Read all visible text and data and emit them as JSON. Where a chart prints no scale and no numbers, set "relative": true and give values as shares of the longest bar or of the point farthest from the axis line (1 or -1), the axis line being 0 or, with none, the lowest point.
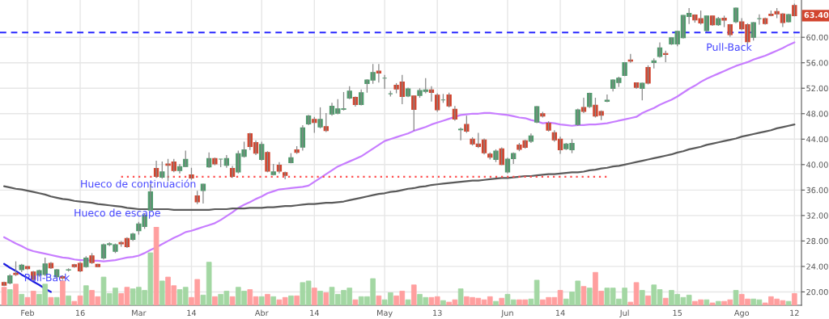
{
  "chart_data": [
    {
      "type": "candlestick",
      "categories": [
        null,
        null,
        null,
        null,
        "Feb",
        null,
        null,
        null,
        null,
        null,
        null,
        null,
        null,
        "16",
        null,
        null,
        null,
        null,
        null,
        null,
        null,
        null,
        null,
        "Mar",
        null,
        null,
        null,
        null,
        null,
        null,
        null,
        null,
        "14",
        null,
        null,
        null,
        null,
        null,
        null,
        null,
        null,
        null,
        null,
        null,
        "Abr",
        null,
        null,
        null,
        null,
        null,
        null,
        null,
        null,
        "14",
        null,
        null,
        null,
        null,
        null,
        null,
        null,
        null,
        null,
        null,
        null,
        "May",
        null,
        null,
        null,
        null,
        null,
        null,
        null,
        null,
        "13",
        null,
        null,
        null,
        null,
        null,
        null,
        null,
        null,
        null,
        null,
        null,
        "Jun",
        null,
        null,
        null,
        null,
        null,
        null,
        null,
        null,
        "14",
        null,
        null,
        null,
        null,
        null,
        null,
        null,
        null,
        null,
        null,
        "Jul",
        null,
        null,
        null,
        null,
        null,
        null,
        null,
        null,
        "15",
        null,
        null,
        null,
        null,
        null,
        null,
        null,
        null,
        null,
        null,
        "Ago",
        null,
        null,
        null,
        null,
        null,
        null,
        null,
        null,
        "12"
      ],
      "ohlc": [
        [
          21.47,
          21.6,
          20.9,
          21.05
        ],
        [
          21.39,
          22.8,
          21.2,
          22.52
        ],
        [
          22.93,
          24.8,
          22.5,
          22.72
        ],
        [
          23.48,
          24.4,
          23.1,
          24.19
        ],
        [
          23.98,
          24.1,
          23.5,
          23.65
        ],
        [
          23.14,
          23.3,
          21.8,
          21.97
        ],
        [
          22.64,
          23.5,
          22.4,
          23.35
        ],
        [
          22.72,
          25.4,
          22.5,
          24.4
        ],
        [
          24.49,
          24.7,
          23.6,
          23.77
        ],
        [
          22.39,
          23.6,
          22.2,
          23.48
        ],
        [
          22.39,
          22.6,
          21.9,
          22.18
        ],
        [
          23.44,
          23.7,
          23.2,
          23.48
        ],
        [
          24.27,
          24.4,
          23.8,
          23.98
        ],
        [
          24.49,
          24.7,
          23.1,
          23.31
        ],
        [
          23.98,
          25.6,
          23.8,
          25.32
        ],
        [
          25.66,
          26.1,
          24.4,
          24.61
        ],
        [
          24.32,
          24.4,
          23.9,
          23.98
        ],
        [
          25.32,
          27.6,
          25.1,
          27.42
        ],
        [
          27.44,
          27.8,
          27.2,
          27.56
        ],
        [
          26.37,
          27.6,
          26.1,
          27.42
        ],
        [
          27.75,
          28.0,
          27.1,
          27.54
        ],
        [
          28.38,
          28.6,
          26.9,
          27.12
        ],
        [
          28.26,
          29.3,
          28.0,
          29.09
        ],
        [
          29.6,
          31.0,
          29.0,
          30.69
        ],
        [
          30.27,
          32.3,
          29.9,
          32.07
        ],
        [
          32.86,
          36.9,
          32.8,
          35.71
        ],
        [
          39.39,
          40.6,
          37.9,
          38.14
        ],
        [
          38.01,
          40.5,
          37.8,
          38.85
        ],
        [
          40.1,
          40.9,
          37.4,
          39.89
        ],
        [
          40.4,
          40.9,
          38.8,
          39.06
        ],
        [
          39.06,
          40.1,
          38.6,
          39.69
        ],
        [
          39.69,
          42.2,
          39.6,
          40.82
        ],
        [
          38.39,
          39.5,
          37.6,
          37.89
        ],
        [
          35.08,
          35.9,
          33.8,
          34.16
        ],
        [
          35.92,
          37.0,
          33.9,
          36.92
        ],
        [
          39.65,
          41.9,
          39.5,
          40.94
        ],
        [
          40.94,
          41.1,
          39.9,
          40.1
        ],
        [
          40.86,
          40.9,
          39.6,
          40.86
        ],
        [
          39.9,
          41.5,
          39.5,
          40.94
        ],
        [
          39.39,
          39.8,
          37.9,
          38.14
        ],
        [
          38.85,
          42.2,
          38.6,
          41.7
        ],
        [
          41.28,
          43.6,
          41.1,
          42.33
        ],
        [
          44.84,
          45.0,
          42.3,
          42.83
        ],
        [
          43.46,
          43.8,
          41.5,
          41.78
        ],
        [
          40.82,
          43.6,
          40.6,
          43.16
        ],
        [
          41.91,
          42.1,
          38.8,
          38.97
        ],
        [
          38.43,
          40.1,
          38.3,
          38.85
        ],
        [
          39.9,
          40.4,
          38.6,
          38.97
        ],
        [
          38.73,
          38.9,
          37.7,
          38.31
        ],
        [
          40.31,
          41.8,
          40.2,
          41.07
        ],
        [
          42.33,
          42.9,
          41.7,
          41.91
        ],
        [
          42.75,
          46.2,
          42.2,
          45.76
        ],
        [
          46.39,
          47.8,
          46.2,
          47.64
        ],
        [
          47.1,
          47.5,
          45.0,
          46.6
        ],
        [
          45.93,
          49.0,
          45.7,
          47.1
        ],
        [
          45.97,
          48.1,
          45.1,
          45.34
        ],
        [
          47.94,
          49.7,
          47.7,
          49.18
        ],
        [
          48.06,
          50.3,
          47.9,
          48.77
        ],
        [
          48.69,
          51.4,
          48.5,
          48.77
        ],
        [
          50.45,
          52.3,
          50.3,
          51.54
        ],
        [
          50.57,
          50.7,
          49.1,
          49.44
        ],
        [
          49.44,
          51.8,
          49.3,
          51.29
        ],
        [
          52.75,
          53.4,
          51.3,
          53.29
        ],
        [
          53.29,
          55.8,
          52.7,
          54.47
        ],
        [
          54.68,
          55.8,
          52.9,
          54.39
        ],
        [
          53.59,
          54.1,
          51.9,
          53.59
        ],
        [
          51.12,
          51.6,
          50.7,
          51.12
        ],
        [
          52.46,
          52.8,
          51.2,
          51.87
        ],
        [
          52.96,
          54.1,
          49.5,
          50.7
        ],
        [
          50.78,
          52.1,
          50.6,
          51.91
        ],
        [
          50.78,
          50.9,
          45.3,
          48.69
        ],
        [
          50.87,
          52.0,
          50.5,
          51.63
        ],
        [
          51.5,
          53.6,
          51.2,
          51.75
        ],
        [
          51.75,
          52.3,
          49.9,
          51.33
        ],
        [
          50.91,
          51.2,
          48.3,
          48.61
        ],
        [
          50.16,
          51.1,
          49.7,
          50.16
        ],
        [
          50.95,
          51.3,
          49.0,
          49.23
        ],
        [
          48.69,
          49.2,
          46.9,
          47.14
        ],
        [
          45.47,
          45.8,
          43.8,
          45.56
        ],
        [
          46.31,
          47.7,
          45.0,
          45.26
        ],
        [
          44.0,
          44.3,
          43.0,
          43.25
        ],
        [
          43.25,
          45.0,
          42.6,
          42.83
        ],
        [
          43.88,
          44.1,
          41.6,
          41.87
        ],
        [
          41.66,
          41.9,
          40.8,
          41.15
        ],
        [
          40.82,
          42.4,
          40.4,
          42.12
        ],
        [
          42.49,
          42.7,
          39.9,
          40.02
        ],
        [
          38.85,
          41.1,
          38.6,
          40.86
        ],
        [
          40.94,
          41.9,
          40.1,
          41.74
        ],
        [
          43.08,
          43.4,
          42.1,
          42.41
        ],
        [
          43.75,
          43.9,
          42.5,
          42.7
        ],
        [
          43.67,
          44.9,
          43.4,
          44.51
        ],
        [
          46.68,
          49.2,
          46.5,
          49.11
        ],
        [
          47.98,
          48.3,
          47.4,
          47.64
        ],
        [
          46.51,
          46.8,
          45.2,
          45.42
        ],
        [
          45.0,
          45.4,
          43.6,
          43.88
        ],
        [
          44.0,
          44.4,
          41.7,
          42.33
        ],
        [
          42.49,
          43.4,
          42.3,
          43.25
        ],
        [
          42.33,
          44.0,
          41.8,
          43.33
        ],
        [
          46.31,
          48.8,
          46.1,
          48.61
        ],
        [
          48.98,
          50.5,
          48.1,
          48.35
        ],
        [
          49.11,
          51.3,
          48.9,
          51.2
        ],
        [
          49.32,
          50.5,
          47.4,
          47.64
        ],
        [
          48.35,
          48.5,
          47.0,
          47.77
        ],
        [
          49.95,
          51.0,
          49.8,
          50.12
        ],
        [
          51.96,
          53.4,
          51.5,
          53.29
        ],
        [
          52.88,
          53.8,
          52.2,
          53.59
        ],
        [
          54.01,
          56.1,
          53.9,
          56.02
        ],
        [
          56.44,
          57.4,
          56.0,
          56.27
        ],
        [
          52.84,
          52.9,
          51.9,
          52.13
        ],
        [
          51.96,
          52.9,
          50.1,
          52.8
        ],
        [
          55.27,
          55.6,
          52.6,
          52.8
        ],
        [
          56.02,
          56.7,
          55.1,
          56.31
        ],
        [
          56.98,
          59.2,
          56.8,
          58.32
        ],
        [
          57.46,
          57.9,
          56.1,
          57.3
        ],
        [
          58.95,
          60.0,
          58.8,
          59.92
        ],
        [
          58.95,
          61.0,
          58.6,
          60.93
        ],
        [
          59.92,
          63.5,
          59.8,
          63.43
        ],
        [
          63.26,
          64.6,
          62.1,
          63.77
        ],
        [
          63.51,
          63.6,
          62.3,
          62.72
        ],
        [
          62.93,
          64.2,
          62.0,
          62.26
        ],
        [
          61.04,
          63.4,
          60.9,
          63.35
        ],
        [
          63.35,
          63.4,
          61.8,
          61.97
        ],
        [
          61.97,
          63.2,
          61.8,
          62.93
        ],
        [
          63.01,
          63.4,
          61.6,
          62.68
        ],
        [
          61.97,
          62.1,
          60.1,
          60.42
        ],
        [
          62.43,
          64.7,
          62.2,
          64.6
        ],
        [
          62.43,
          63.0,
          61.1,
          61.34
        ],
        [
          61.97,
          62.2,
          59.0,
          59.29
        ],
        [
          60.0,
          62.4,
          59.5,
          62.3
        ],
        [
          62.93,
          63.6,
          62.0,
          62.93
        ],
        [
          62.93,
          63.1,
          62.0,
          62.17
        ],
        [
          63.64,
          64.2,
          63.3,
          63.43
        ],
        [
          64.06,
          64.6,
          63.0,
          63.68
        ],
        [
          63.68,
          63.8,
          61.6,
          62.3
        ],
        [
          62.43,
          63.7,
          62.3,
          63.56
        ],
        [
          65.0,
          65.3,
          63.3,
          63.4
        ]
      ],
      "colors": [
        "#d2452f",
        "#4f9a6c",
        "#d2452f",
        "#4f9a6c",
        "#d2452f",
        "#d2452f",
        "#4f9a6c",
        "#4f9a6c",
        "#d2452f",
        "#4f9a6c",
        "#d2452f",
        "#4f9a6c",
        "#d2452f",
        "#d2452f",
        "#4f9a6c",
        "#d2452f",
        "#d2452f",
        "#4f9a6c",
        "#4f9a6c",
        "#4f9a6c",
        "#d2452f",
        "#d2452f",
        "#4f9a6c",
        "#4f9a6c",
        "#4f9a6c",
        "#4f9a6c",
        "#d2452f",
        "#4f9a6c",
        "#d2452f",
        "#d2452f",
        "#4f9a6c",
        "#4f9a6c",
        "#d2452f",
        "#d2452f",
        "#4f9a6c",
        "#4f9a6c",
        "#d2452f",
        "#4f9a6c",
        "#4f9a6c",
        "#d2452f",
        "#4f9a6c",
        "#4f9a6c",
        "#d2452f",
        "#d2452f",
        "#4f9a6c",
        "#d2452f",
        "#4f9a6c",
        "#d2452f",
        "#d2452f",
        "#4f9a6c",
        "#d2452f",
        "#4f9a6c",
        "#4f9a6c",
        "#d2452f",
        "#4f9a6c",
        "#d2452f",
        "#4f9a6c",
        "#4f9a6c",
        "#4f9a6c",
        "#4f9a6c",
        "#d2452f",
        "#4f9a6c",
        "#4f9a6c",
        "#4f9a6c",
        "#d2452f",
        "#4f9a6c",
        "#4f9a6c",
        "#d2452f",
        "#d2452f",
        "#4f9a6c",
        "#d2452f",
        "#4f9a6c",
        "#4f9a6c",
        "#d2452f",
        "#d2452f",
        "#4f9a6c",
        "#d2452f",
        "#d2452f",
        "#4f9a6c",
        "#d2452f",
        "#d2452f",
        "#d2452f",
        "#d2452f",
        "#d2452f",
        "#4f9a6c",
        "#d2452f",
        "#4f9a6c",
        "#4f9a6c",
        "#d2452f",
        "#d2452f",
        "#4f9a6c",
        "#4f9a6c",
        "#d2452f",
        "#d2452f",
        "#d2452f",
        "#d2452f",
        "#4f9a6c",
        "#4f9a6c",
        "#4f9a6c",
        "#d2452f",
        "#4f9a6c",
        "#d2452f",
        "#d2452f",
        "#4f9a6c",
        "#4f9a6c",
        "#4f9a6c",
        "#4f9a6c",
        "#d2452f",
        "#d2452f",
        "#4f9a6c",
        "#d2452f",
        "#4f9a6c",
        "#4f9a6c",
        "#d2452f",
        "#4f9a6c",
        "#4f9a6c",
        "#4f9a6c",
        "#4f9a6c",
        "#d2452f",
        "#d2452f",
        "#4f9a6c",
        "#d2452f",
        "#4f9a6c",
        "#d2452f",
        "#d2452f",
        "#4f9a6c",
        "#d2452f",
        "#d2452f",
        "#4f9a6c",
        "#4f9a6c",
        "#d2452f",
        "#d2452f",
        "#d2452f",
        "#d2452f",
        "#4f9a6c",
        "#d2452f"
      ],
      "series": [
        {
          "type": "line",
          "color": "#c77dff",
          "values": [
            28.6,
            28.1,
            27.6,
            27.2,
            26.7,
            26.4,
            26.2,
            26.0,
            25.8,
            25.6,
            25.4,
            25.3,
            25.1,
            25.0,
            25.0,
            24.9,
            24.9,
            24.8,
            24.9,
            25.0,
            25.2,
            25.4,
            25.5,
            25.7,
            26.1,
            26.6,
            27.0,
            27.5,
            28.0,
            28.5,
            28.9,
            29.4,
            29.6,
            29.9,
            30.2,
            30.5,
            30.8,
            31.3,
            31.9,
            32.5,
            33.2,
            33.7,
            34.1,
            34.6,
            35.0,
            35.5,
            35.8,
            36.1,
            36.2,
            36.3,
            36.4,
            36.5,
            36.7,
            37.3,
            37.9,
            38.5,
            39.1,
            39.7,
            40.1,
            40.5,
            40.9,
            41.3,
            41.9,
            42.5,
            43.1,
            43.7,
            44.0,
            44.3,
            44.6,
            44.9,
            45.3,
            45.6,
            45.9,
            46.3,
            46.6,
            46.9,
            47.2,
            47.5,
            47.8,
            47.9,
            48.0,
            48.0,
            48.1,
            48.1,
            48.0,
            47.9,
            47.8,
            47.6,
            47.4,
            47.3,
            47.0,
            46.8,
            46.5,
            46.6,
            46.5,
            46.3,
            46.2,
            46.1,
            46.2,
            46.2,
            46.3,
            46.3,
            46.4,
            46.5,
            46.7,
            46.9,
            47.1,
            47.3,
            47.5,
            48.1,
            48.5,
            48.9,
            49.4,
            49.8,
            50.2,
            50.7,
            51.3,
            51.9,
            52.4,
            53.0,
            53.5,
            53.9,
            54.3,
            54.7,
            55.1,
            55.5,
            55.8,
            56.1,
            56.5,
            56.8,
            57.1,
            57.5,
            57.9,
            58.3,
            58.8,
            59.2
          ]
        },
        {
          "type": "line",
          "color": "#5a5a5a",
          "values": [
            36.6,
            36.4,
            36.2,
            36.1,
            35.9,
            35.7,
            35.5,
            35.3,
            35.0,
            34.8,
            34.6,
            34.5,
            34.3,
            34.2,
            34.1,
            34.0,
            33.8,
            33.7,
            33.6,
            33.5,
            33.4,
            33.2,
            33.1,
            33.0,
            33.0,
            33.0,
            33.0,
            33.0,
            33.0,
            32.9,
            32.9,
            32.9,
            32.9,
            32.9,
            32.9,
            32.9,
            33.0,
            33.0,
            33.0,
            33.1,
            33.1,
            33.1,
            33.2,
            33.2,
            33.2,
            33.3,
            33.3,
            33.4,
            33.5,
            33.5,
            33.6,
            33.7,
            33.8,
            33.8,
            33.9,
            34.0,
            34.0,
            34.1,
            34.2,
            34.4,
            34.6,
            34.8,
            35.0,
            35.2,
            35.4,
            35.5,
            35.7,
            35.8,
            36.0,
            36.2,
            36.3,
            36.5,
            36.6,
            36.8,
            36.9,
            37.0,
            37.1,
            37.2,
            37.3,
            37.4,
            37.5,
            37.5,
            37.6,
            37.7,
            37.8,
            37.9,
            37.9,
            38.0,
            38.1,
            38.2,
            38.2,
            38.3,
            38.4,
            38.5,
            38.5,
            38.6,
            38.7,
            38.8,
            38.8,
            38.9,
            39.1,
            39.2,
            39.4,
            39.5,
            39.7,
            39.8,
            40.0,
            40.2,
            40.4,
            40.6,
            40.8,
            41.0,
            41.2,
            41.4,
            41.6,
            41.9,
            42.1,
            42.4,
            42.6,
            42.8,
            43.1,
            43.3,
            43.5,
            43.7,
            43.9,
            44.1,
            44.4,
            44.6,
            44.8,
            45.0,
            45.2,
            45.4,
            45.7,
            45.9,
            46.1,
            46.3
          ]
        },
        {
          "type": "line",
          "color": "#ff4d4d",
          "line_style": "dotted",
          "values": [
            null,
            null,
            null,
            null,
            null,
            null,
            null,
            null,
            null,
            null,
            null,
            null,
            null,
            null,
            null,
            null,
            null,
            null,
            null,
            null,
            38.1,
            38.1,
            38.1,
            38.1,
            38.1,
            38.1,
            38.1,
            38.1,
            38.1,
            38.1,
            38.1,
            38.1,
            38.1,
            38.1,
            38.1,
            38.1,
            38.1,
            38.1,
            38.1,
            38.1,
            38.1,
            38.1,
            38.1,
            38.1,
            38.1,
            38.1,
            38.1,
            38.1,
            38.1,
            38.1,
            38.1,
            38.1,
            38.1,
            38.1,
            38.1,
            38.1,
            38.1,
            38.1,
            38.1,
            38.1,
            38.1,
            38.1,
            38.1,
            38.1,
            38.1,
            38.1,
            38.1,
            38.1,
            38.1,
            38.1,
            38.1,
            38.1,
            38.1,
            38.1,
            38.1,
            38.1,
            38.1,
            38.1,
            38.1,
            38.1,
            38.1,
            38.1,
            38.1,
            38.1,
            38.1,
            38.1,
            38.1,
            38.1,
            38.1,
            38.1,
            38.1,
            38.1,
            38.1,
            38.1,
            38.1,
            38.1,
            38.1,
            38.1,
            38.1,
            38.1,
            38.1,
            38.1,
            38.1,
            38.1,
            null,
            null,
            null,
            null,
            null,
            null,
            null,
            null,
            null,
            null,
            null,
            null,
            null,
            null,
            null,
            null,
            null,
            null,
            null,
            null,
            null,
            null,
            null,
            null,
            null,
            null,
            null,
            null,
            null,
            null,
            null,
            null
          ]
        },
        {
          "type": "line",
          "color": "#1f1fe0",
          "values": [
            24.4,
            23.8,
            23.3,
            22.7,
            22.2,
            21.6,
            21.1,
            20.5,
            20.0,
            null,
            null,
            null,
            null,
            null,
            null,
            null,
            null,
            null,
            null,
            null,
            null,
            null,
            null,
            null,
            null,
            null,
            null,
            null,
            null,
            null,
            null,
            null,
            null,
            null,
            null,
            null,
            null,
            null,
            null,
            null,
            null,
            null,
            null,
            null,
            null,
            null,
            null,
            null,
            null,
            null,
            null,
            null,
            null,
            null,
            null,
            null,
            null,
            null,
            null,
            null,
            null,
            null,
            null,
            null,
            null,
            null,
            null,
            null,
            null,
            null,
            null,
            null,
            null,
            null,
            null,
            null,
            null,
            null,
            null,
            null,
            null,
            null,
            null,
            null,
            null,
            null,
            null,
            null,
            null,
            null,
            null,
            null,
            null,
            null,
            null,
            null,
            null,
            null,
            null,
            null,
            null,
            null,
            null,
            null,
            null,
            null,
            null,
            null,
            null,
            null,
            null,
            null,
            null,
            null,
            null,
            null,
            null,
            null,
            null,
            null,
            null,
            null,
            null,
            null,
            null,
            null,
            null,
            null,
            null,
            null,
            null,
            null,
            null,
            null,
            null,
            null
          ]
        }
      ],
      "ylim": [
        17.9,
        65.86
      ],
      "yticks": [
        {
          "value": 20,
          "label": "20.00"
        },
        {
          "value": 24,
          "label": "24.00"
        },
        {
          "value": 28,
          "label": "28.00"
        },
        {
          "value": 32,
          "label": "32.00"
        },
        {
          "value": 36,
          "label": "36.00"
        },
        {
          "value": 40,
          "label": "40.00"
        },
        {
          "value": 44,
          "label": "44.00"
        },
        {
          "value": 48,
          "label": "48.00"
        },
        {
          "value": 52,
          "label": "52.00"
        },
        {
          "value": 56,
          "label": "56.00"
        },
        {
          "value": 60,
          "label": "60.00"
        }
      ],
      "grid": true,
      "ref_lines": [
        {
          "axis": "y",
          "value": 60.75,
          "color": "#2a2aff",
          "line_style": "dashed"
        }
      ],
      "annotations": [
        "Pull-Back",
        "Hueco de escape",
        "Hueco de continuación",
        "Pull-Back",
        {
          "text": "63.40",
          "x": "12",
          "y": 63.4
        }
      ]
    },
    {
      "type": "bar",
      "relative": true,
      "categories": [
        null,
        null,
        null,
        null,
        null,
        null,
        null,
        null,
        null,
        null,
        null,
        null,
        null,
        null,
        null,
        null,
        null,
        null,
        null,
        null,
        null,
        null,
        null,
        null,
        null,
        null,
        null,
        null,
        null,
        null,
        null,
        null,
        null,
        null,
        null,
        null,
        null,
        null,
        null,
        null,
        null,
        null,
        null,
        null,
        null,
        null,
        null,
        null,
        null,
        null,
        null,
        null,
        null,
        null,
        null,
        null,
        null,
        null,
        null,
        null,
        null,
        null,
        null,
        null,
        null,
        null,
        null,
        null,
        null,
        null,
        null,
        null,
        null,
        null,
        null,
        null,
        null,
        null,
        null,
        null,
        null,
        null,
        null,
        null,
        null,
        null,
        null,
        null,
        null,
        null,
        null,
        null,
        null,
        null,
        null,
        null,
        null,
        null,
        null,
        null,
        null,
        null,
        null,
        null,
        null,
        null,
        null,
        null,
        null,
        null,
        null,
        null,
        null,
        null,
        null,
        null,
        null,
        null,
        null,
        null,
        null,
        null,
        null,
        null,
        null,
        null,
        null,
        null,
        null,
        null,
        null,
        null,
        null,
        null,
        null,
        null
      ],
      "values": [
        0.23,
        0.2,
        0.27,
        0.14,
        0.1,
        0.18,
        0.14,
        0.27,
        0.1,
        0.1,
        0.31,
        0.12,
        0.05,
        0.12,
        0.25,
        0.19,
        0.11,
        0.36,
        0.15,
        0.22,
        0.15,
        0.23,
        0.21,
        0.23,
        0.19,
        0.67,
        1.0,
        0.31,
        0.36,
        0.25,
        0.2,
        0.23,
        0.1,
        0.33,
        0.13,
        0.55,
        0.11,
        0.14,
        0.18,
        0.11,
        0.23,
        0.18,
        0.2,
        0.11,
        0.11,
        0.14,
        0.11,
        0.07,
        0.1,
        0.12,
        0.12,
        0.29,
        0.31,
        0.22,
        0.18,
        0.16,
        0.23,
        0.14,
        0.19,
        0.22,
        0.07,
        0.11,
        0.11,
        0.34,
        0.12,
        0.07,
        0.16,
        0.12,
        0.18,
        0.07,
        0.26,
        0.14,
        0.1,
        0.1,
        0.11,
        0.06,
        0.04,
        0.07,
        0.21,
        0.11,
        0.1,
        0.09,
        0.07,
        0.11,
        0.05,
        0.09,
        0.14,
        0.07,
        0.07,
        0.07,
        0.08,
        0.32,
        0.07,
        0.1,
        0.1,
        0.19,
        0.08,
        0.17,
        0.31,
        0.24,
        0.22,
        0.42,
        0.18,
        0.22,
        0.22,
        0.08,
        0.22,
        0.04,
        0.29,
        0.19,
        0.12,
        0.26,
        0.2,
        0.09,
        0.19,
        0.14,
        0.1,
        0.13,
        0.05,
        0.07,
        0.07,
        0.03,
        0.05,
        0.05,
        0.07,
        0.19,
        0.14,
        0.08,
        0.08,
        0.07,
        0.03,
        0.11,
        0.08,
        0.06,
        0.05,
        0.15
      ],
      "colors": [
        "#ff9f9f",
        "#a3d7a3",
        "#ff9f9f",
        "#a3d7a3",
        "#ff9f9f",
        "#ff9f9f",
        "#a3d7a3",
        "#a3d7a3",
        "#ff9f9f",
        "#a3d7a3",
        "#ff9f9f",
        "#a3d7a3",
        "#ff9f9f",
        "#ff9f9f",
        "#a3d7a3",
        "#ff9f9f",
        "#ff9f9f",
        "#a3d7a3",
        "#a3d7a3",
        "#a3d7a3",
        "#ff9f9f",
        "#ff9f9f",
        "#a3d7a3",
        "#a3d7a3",
        "#a3d7a3",
        "#a3d7a3",
        "#ff9f9f",
        "#a3d7a3",
        "#ff9f9f",
        "#ff9f9f",
        "#a3d7a3",
        "#a3d7a3",
        "#ff9f9f",
        "#ff9f9f",
        "#a3d7a3",
        "#a3d7a3",
        "#ff9f9f",
        "#a3d7a3",
        "#a3d7a3",
        "#ff9f9f",
        "#a3d7a3",
        "#a3d7a3",
        "#ff9f9f",
        "#ff9f9f",
        "#a3d7a3",
        "#ff9f9f",
        "#a3d7a3",
        "#ff9f9f",
        "#ff9f9f",
        "#a3d7a3",
        "#ff9f9f",
        "#a3d7a3",
        "#a3d7a3",
        "#ff9f9f",
        "#a3d7a3",
        "#ff9f9f",
        "#a3d7a3",
        "#a3d7a3",
        "#a3d7a3",
        "#a3d7a3",
        "#ff9f9f",
        "#a3d7a3",
        "#a3d7a3",
        "#a3d7a3",
        "#ff9f9f",
        "#a3d7a3",
        "#a3d7a3",
        "#ff9f9f",
        "#ff9f9f",
        "#a3d7a3",
        "#ff9f9f",
        "#a3d7a3",
        "#a3d7a3",
        "#ff9f9f",
        "#ff9f9f",
        "#a3d7a3",
        "#ff9f9f",
        "#ff9f9f",
        "#a3d7a3",
        "#ff9f9f",
        "#ff9f9f",
        "#ff9f9f",
        "#ff9f9f",
        "#ff9f9f",
        "#a3d7a3",
        "#ff9f9f",
        "#a3d7a3",
        "#a3d7a3",
        "#ff9f9f",
        "#ff9f9f",
        "#a3d7a3",
        "#a3d7a3",
        "#ff9f9f",
        "#ff9f9f",
        "#ff9f9f",
        "#ff9f9f",
        "#a3d7a3",
        "#a3d7a3",
        "#a3d7a3",
        "#ff9f9f",
        "#a3d7a3",
        "#ff9f9f",
        "#ff9f9f",
        "#a3d7a3",
        "#a3d7a3",
        "#a3d7a3",
        "#a3d7a3",
        "#ff9f9f",
        "#ff9f9f",
        "#a3d7a3",
        "#ff9f9f",
        "#a3d7a3",
        "#a3d7a3",
        "#ff9f9f",
        "#a3d7a3",
        "#a3d7a3",
        "#a3d7a3",
        "#a3d7a3",
        "#ff9f9f",
        "#ff9f9f",
        "#a3d7a3",
        "#ff9f9f",
        "#a3d7a3",
        "#ff9f9f",
        "#ff9f9f",
        "#a3d7a3",
        "#ff9f9f",
        "#ff9f9f",
        "#a3d7a3",
        "#a3d7a3",
        "#ff9f9f",
        "#ff9f9f",
        "#ff9f9f",
        "#ff9f9f",
        "#a3d7a3",
        "#ff9f9f"
      ]
    }
  ]
}
